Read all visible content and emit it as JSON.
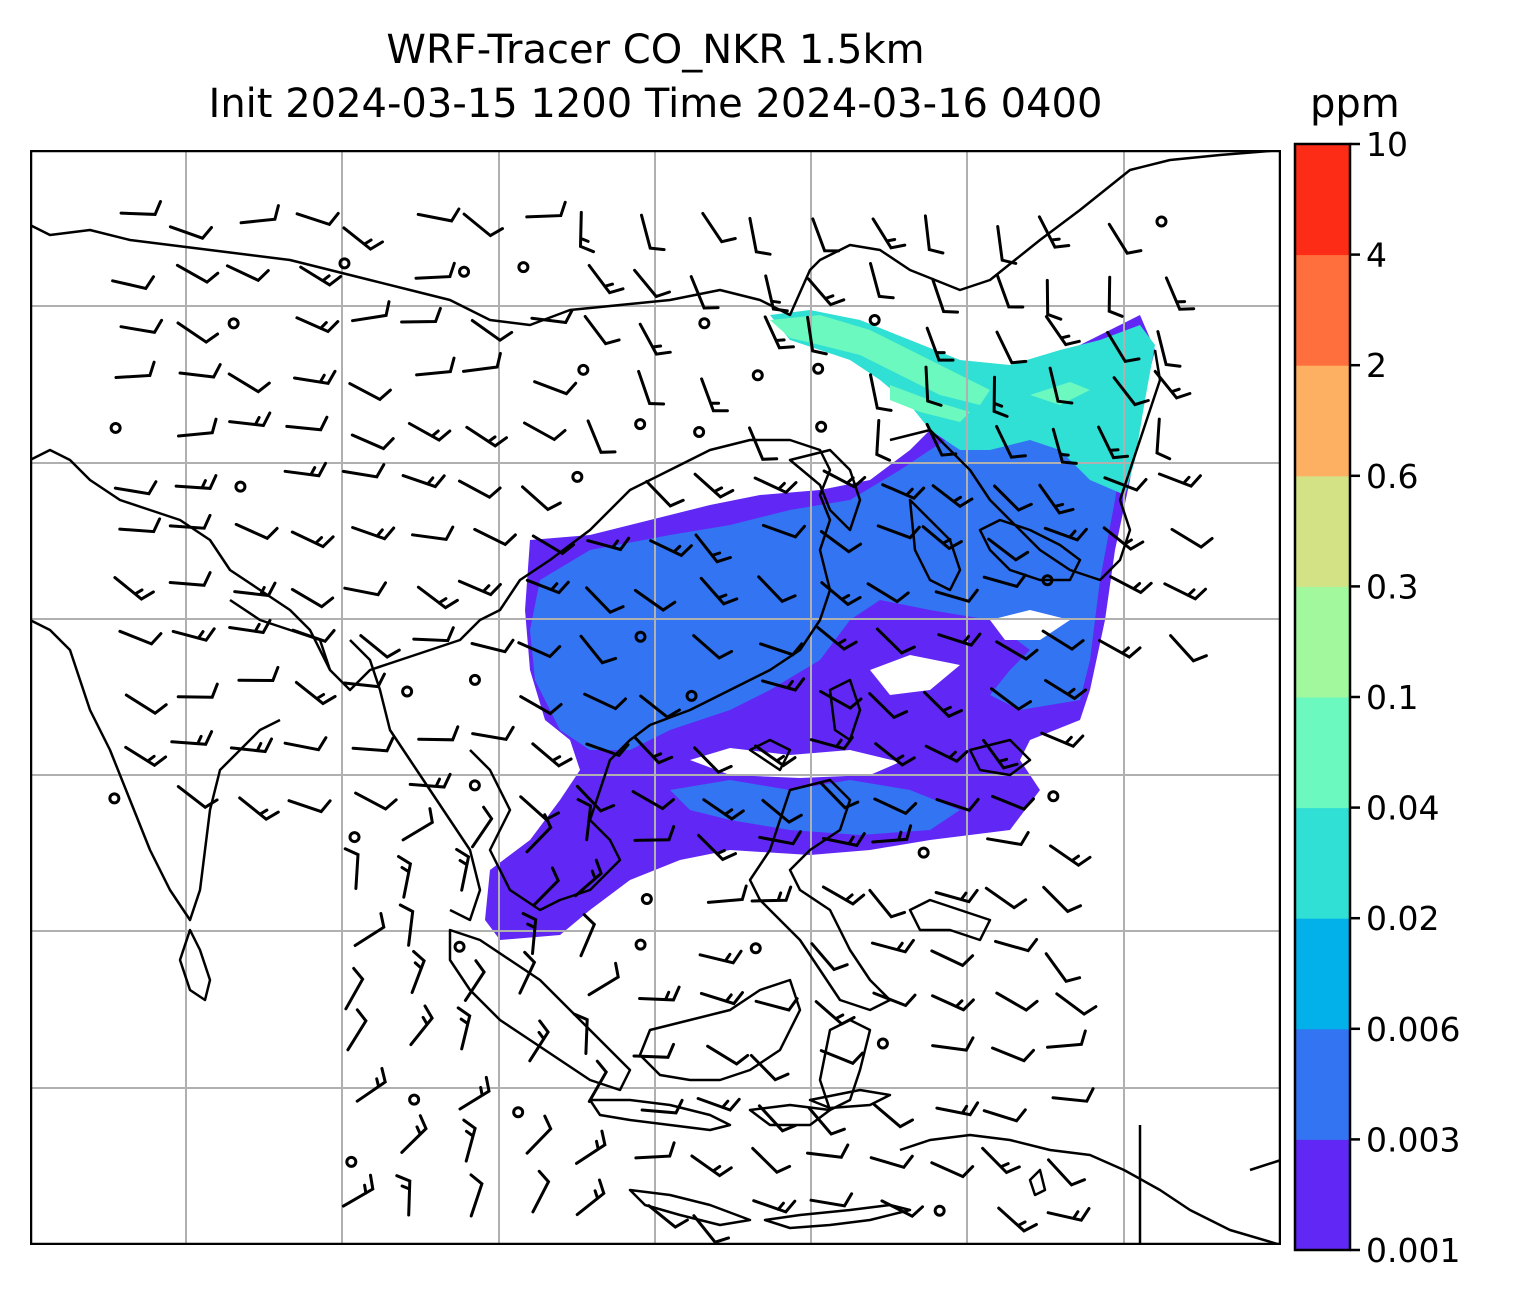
{
  "title": {
    "line1": "WRF-Tracer CO_NKR 1.5km",
    "line2": "Init 2024-03-15 1200 Time 2024-03-16 0400"
  },
  "colorbar": {
    "unit": "ppm",
    "levels": [
      "0.001",
      "0.003",
      "0.006",
      "0.02",
      "0.04",
      "0.1",
      "0.3",
      "0.6",
      "2",
      "4",
      "10"
    ],
    "colors": [
      "#6128f5",
      "#3274f2",
      "#02b1e9",
      "#30e0d4",
      "#6bf9bf",
      "#a1f89d",
      "#d2e285",
      "#fdaf62",
      "#fe6f3d",
      "#fc2c17"
    ]
  },
  "map": {
    "gridlines": true,
    "coastline_color": "#000000",
    "grid_color": "#b0b0b0",
    "wind_barbs": true
  }
}
